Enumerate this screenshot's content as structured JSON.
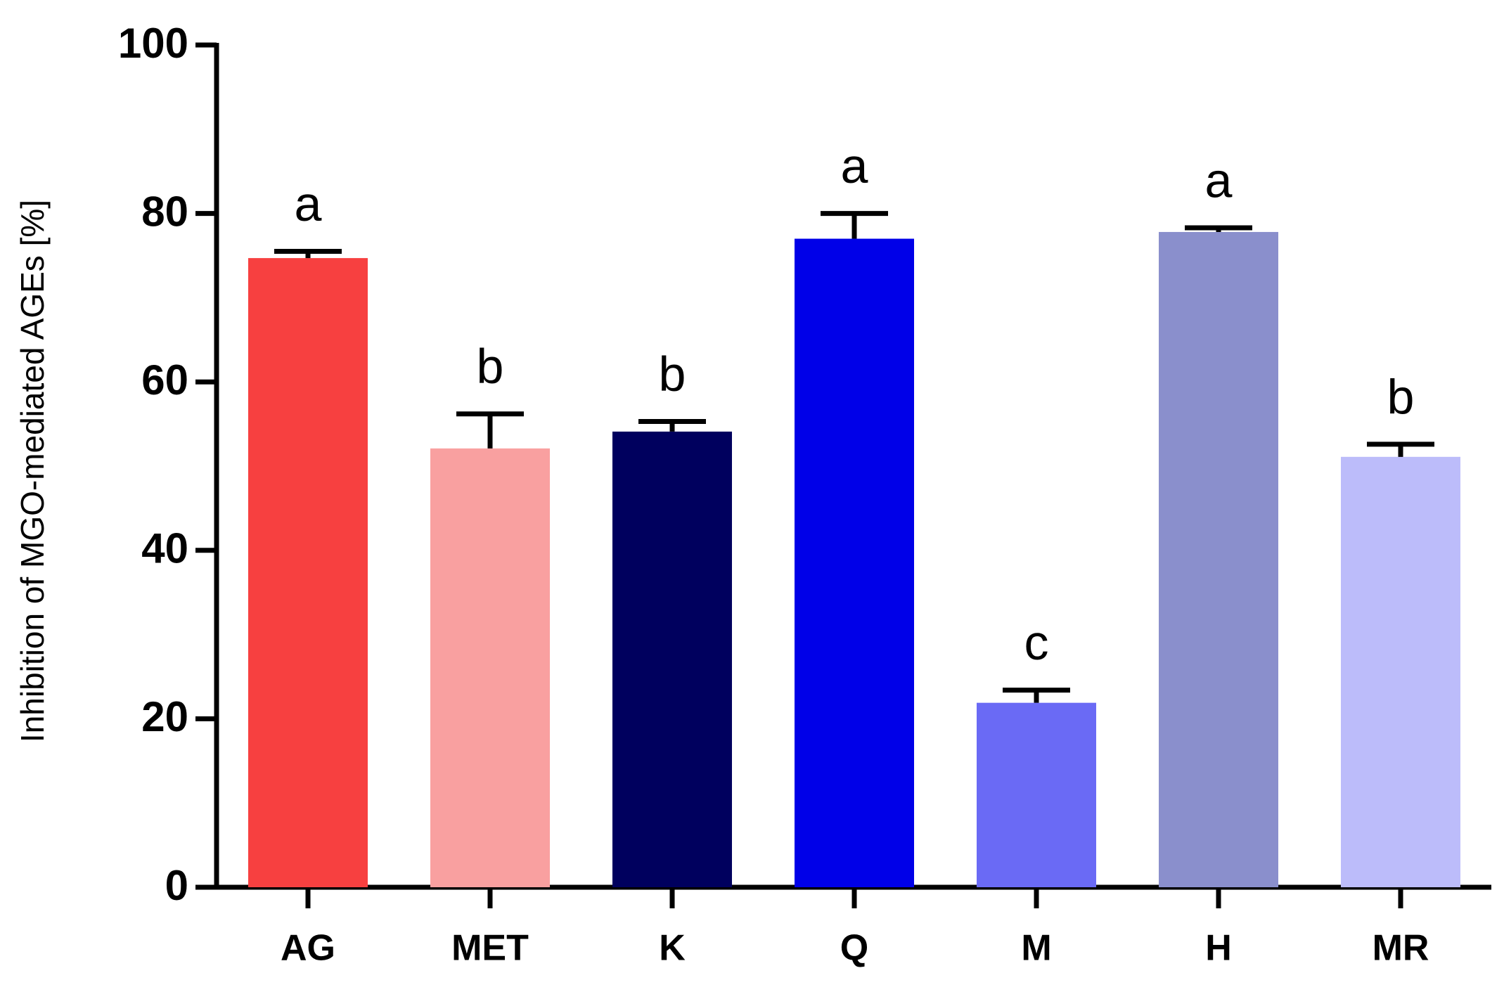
{
  "chart_data": {
    "type": "bar",
    "y_label": "Inhibition of MGO-mediated AGEs [%]",
    "categories": [
      "AG",
      "MET",
      "K",
      "Q",
      "M",
      "H",
      "MR"
    ],
    "values": [
      74.7,
      52.1,
      54.1,
      77.0,
      21.9,
      77.8,
      51.1
    ],
    "errors": [
      0.8,
      4.1,
      1.2,
      3.0,
      1.5,
      0.5,
      1.5
    ],
    "letters": [
      "a",
      "b",
      "b",
      "a",
      "c",
      "a",
      "b"
    ],
    "colors": [
      "#f74040",
      "#f9a0a0",
      "#00005e",
      "#0000e8",
      "#6a6af5",
      "#8a8fcc",
      "#bcbcfa"
    ],
    "ylim": [
      0,
      100
    ],
    "yticks": [
      0,
      20,
      40,
      60,
      80,
      100
    ]
  }
}
